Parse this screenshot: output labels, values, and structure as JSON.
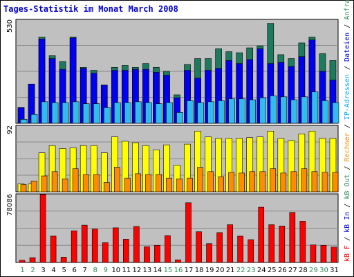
{
  "chart_data": [
    {
      "type": "bar",
      "title": "Tages-Statistik im Monat March 2008",
      "panel": "top",
      "ymax_label": "530",
      "ylim": [
        0,
        530
      ],
      "categories": [
        "1",
        "2",
        "3",
        "4",
        "5",
        "6",
        "7",
        "8",
        "9",
        "10",
        "11",
        "12",
        "13",
        "14",
        "15",
        "16",
        "17",
        "18",
        "19",
        "20",
        "21",
        "22",
        "23",
        "24",
        "25",
        "26",
        "27",
        "28",
        "29",
        "30",
        "31"
      ],
      "weekend_days": [
        "1",
        "2",
        "8",
        "9",
        "15",
        "16",
        "22",
        "23",
        "29",
        "30"
      ],
      "series": [
        {
          "name": "Anfragen",
          "color": "#1c7a5e",
          "values": [
            80,
            200,
            440,
            345,
            315,
            440,
            285,
            270,
            195,
            285,
            295,
            285,
            305,
            285,
            265,
            145,
            300,
            330,
            330,
            380,
            365,
            360,
            385,
            395,
            510,
            350,
            330,
            410,
            440,
            355,
            320
          ]
        },
        {
          "name": "Dateien",
          "color": "#0000ee",
          "values": [
            80,
            200,
            430,
            330,
            275,
            435,
            280,
            255,
            195,
            270,
            270,
            275,
            275,
            260,
            245,
            130,
            270,
            230,
            270,
            280,
            320,
            305,
            325,
            380,
            305,
            310,
            290,
            340,
            425,
            265,
            220
          ]
        },
        {
          "name": "IP-Adressen",
          "color": "#2cc0ff",
          "values": [
            20,
            20,
            0,
            0,
            0,
            0,
            0,
            0,
            0,
            0,
            0,
            0,
            0,
            0,
            0,
            0,
            0,
            0,
            0,
            0,
            0,
            0,
            0,
            0,
            0,
            0,
            0,
            0,
            0,
            0,
            0
          ]
        },
        {
          "name": "Rechner",
          "color": "#33bbee",
          "values": [
            20,
            45,
            110,
            105,
            105,
            110,
            100,
            100,
            80,
            105,
            105,
            110,
            105,
            100,
            105,
            55,
            115,
            105,
            110,
            115,
            125,
            125,
            120,
            130,
            140,
            135,
            120,
            135,
            160,
            115,
            105
          ]
        }
      ]
    },
    {
      "type": "bar",
      "panel": "middle",
      "ymax_label": "92",
      "ylim": [
        0,
        92
      ],
      "series": [
        {
          "name": "Rechner",
          "color": "#ffff00",
          "values": [
            11,
            11,
            54,
            64,
            60,
            61,
            64,
            64,
            54,
            76,
            70,
            68,
            64,
            58,
            65,
            37,
            66,
            84,
            76,
            74,
            74,
            74,
            75,
            76,
            84,
            74,
            71,
            80,
            84,
            74,
            74
          ]
        },
        {
          "name": "Out",
          "color": "#ff8c00",
          "values": [
            10,
            15,
            22,
            28,
            18,
            32,
            24,
            24,
            13,
            34,
            19,
            25,
            24,
            24,
            19,
            18,
            19,
            34,
            28,
            21,
            27,
            26,
            28,
            28,
            32,
            26,
            28,
            32,
            28,
            27,
            27
          ]
        }
      ]
    },
    {
      "type": "bar",
      "panel": "bottom",
      "ymax_label": "78086",
      "ylim": [
        0,
        78086
      ],
      "series": [
        {
          "name": "kB F",
          "color": "#ff0000",
          "values": [
            2500,
            5500,
            77500,
            30000,
            6000,
            36000,
            42500,
            38000,
            22500,
            39500,
            26500,
            41000,
            18000,
            19500,
            30500,
            3000,
            68000,
            35000,
            21500,
            34000,
            43000,
            30000,
            26000,
            63000,
            43000,
            41500,
            57000,
            47000,
            20000,
            19500,
            17500
          ]
        }
      ]
    }
  ],
  "legend": {
    "text": "kB F / kB In / kB Out / Rechner / IP-Adressen / Dateien / Anfragen",
    "segments": [
      {
        "text": "kB F",
        "color": "#ff0000"
      },
      {
        "text": " / ",
        "color": "#000000"
      },
      {
        "text": "kB In",
        "color": "#0000ee"
      },
      {
        "text": " / ",
        "color": "#000000"
      },
      {
        "text": "kB Out",
        "color": "#2e8b57"
      },
      {
        "text": " / ",
        "color": "#000000"
      },
      {
        "text": "Rechner",
        "color": "#ff8c00"
      },
      {
        "text": " / ",
        "color": "#000000"
      },
      {
        "text": "IP-Adressen",
        "color": "#00aaff"
      },
      {
        "text": " / ",
        "color": "#000000"
      },
      {
        "text": "Dateien",
        "color": "#0000ee"
      },
      {
        "text": " / ",
        "color": "#000000"
      },
      {
        "text": "Anfragen",
        "color": "#2e8b57"
      }
    ]
  }
}
